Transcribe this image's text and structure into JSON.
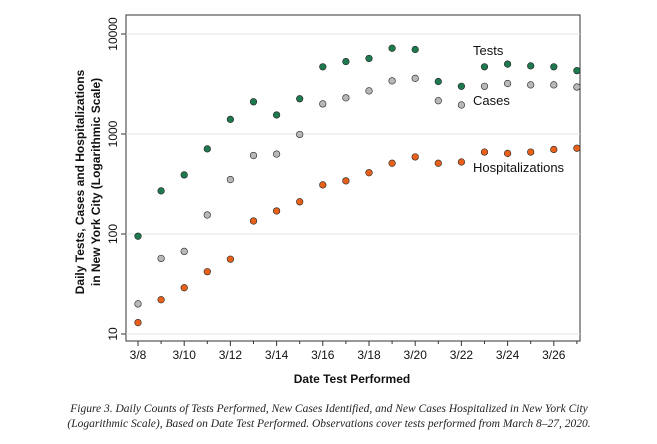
{
  "chart_data": {
    "type": "scatter",
    "xlabel": "Date Test Performed",
    "ylabel_line1": "Daily Tests, Cases and Hospitalizations",
    "ylabel_line2": "in New York City (Logarithmic Scale)",
    "yscale": "log",
    "ylim": [
      10,
      10000
    ],
    "y_ticks": [
      10,
      100,
      1000,
      10000
    ],
    "y_tick_labels": [
      "10",
      "100",
      "1000",
      "10000"
    ],
    "x": [
      "3/8",
      "3/9",
      "3/10",
      "3/11",
      "3/12",
      "3/13",
      "3/14",
      "3/15",
      "3/16",
      "3/17",
      "3/18",
      "3/19",
      "3/20",
      "3/21",
      "3/22",
      "3/23",
      "3/24",
      "3/25",
      "3/26",
      "3/27"
    ],
    "x_tick_labels": [
      "3/8",
      "3/10",
      "3/12",
      "3/14",
      "3/16",
      "3/18",
      "3/20",
      "3/22",
      "3/24",
      "3/26"
    ],
    "grid": "horizontal",
    "series": [
      {
        "name": "Tests",
        "color": "#1e7a4e",
        "values": [
          95,
          270,
          390,
          710,
          1400,
          2100,
          1550,
          2250,
          4700,
          5300,
          5700,
          7200,
          7000,
          3350,
          3000,
          4700,
          5000,
          4800,
          4700,
          4300
        ]
      },
      {
        "name": "Cases",
        "color": "#b8b8b8",
        "values": [
          20,
          57,
          67,
          155,
          350,
          610,
          630,
          990,
          2000,
          2300,
          2700,
          3400,
          3600,
          2150,
          1950,
          3000,
          3200,
          3100,
          3100,
          2950
        ]
      },
      {
        "name": "Hospitalizations",
        "color": "#e8611b",
        "values": [
          13,
          22,
          29,
          42,
          56,
          135,
          170,
          210,
          310,
          340,
          410,
          510,
          590,
          510,
          525,
          660,
          640,
          660,
          700,
          720
        ]
      }
    ]
  },
  "caption_line1": "Figure 3. Daily Counts of Tests Performed, New Cases Identified, and New Cases Hospitalized in New York City",
  "caption_line2": "(Logarithmic Scale), Based on Date Test Performed. Observations cover tests performed from March 8–27, 2020."
}
